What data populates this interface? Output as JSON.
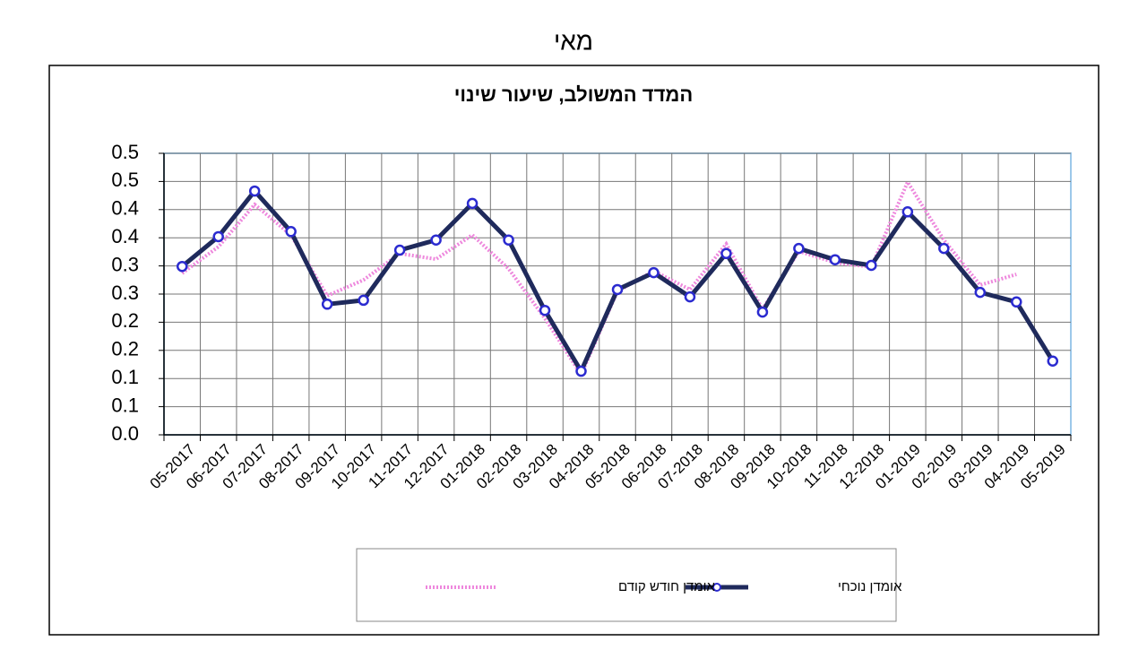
{
  "heading": "מאי",
  "chart_data": {
    "type": "line",
    "title": "המדד המשולב, שיעור שינוי",
    "categories": [
      "05-2017",
      "06-2017",
      "07-2017",
      "08-2017",
      "09-2017",
      "10-2017",
      "11-2017",
      "12-2017",
      "01-2018",
      "02-2018",
      "03-2018",
      "04-2018",
      "05-2018",
      "06-2018",
      "07-2018",
      "08-2018",
      "09-2018",
      "10-2018",
      "11-2018",
      "12-2018",
      "01-2019",
      "02-2019",
      "03-2019",
      "04-2019",
      "05-2019"
    ],
    "series": [
      {
        "name": "אומדן נוכחי",
        "color": "#1f2a5c",
        "marker_color": "#2b2bd0",
        "values": [
          0.299,
          0.352,
          0.433,
          0.361,
          0.232,
          0.239,
          0.328,
          0.346,
          0.411,
          0.346,
          0.221,
          0.113,
          0.258,
          0.288,
          0.245,
          0.322,
          0.218,
          0.331,
          0.311,
          0.301,
          0.396,
          0.331,
          0.253,
          0.236,
          0.131
        ]
      },
      {
        "name": "אומדן חודש קודם",
        "color": "#ee88dd",
        "values": [
          0.287,
          0.334,
          0.409,
          0.355,
          0.247,
          0.275,
          0.322,
          0.312,
          0.355,
          0.295,
          0.207,
          0.107,
          0.255,
          0.291,
          0.258,
          0.339,
          0.223,
          0.326,
          0.306,
          0.298,
          0.449,
          0.346,
          0.266,
          0.285,
          null
        ]
      }
    ],
    "ylim": [
      0,
      0.5
    ],
    "yticks": [
      {
        "value": 0,
        "label": "0.0"
      },
      {
        "value": 0.05,
        "label": "0.1"
      },
      0.1,
      {
        "value": 0.15,
        "label": "0.2"
      },
      0.2,
      {
        "value": 0.25,
        "label": "0.3"
      },
      0.3,
      {
        "value": 0.35,
        "label": "0.4"
      },
      0.4,
      {
        "value": 0.45,
        "label": "0.5"
      },
      0.5
    ],
    "grid": true
  }
}
